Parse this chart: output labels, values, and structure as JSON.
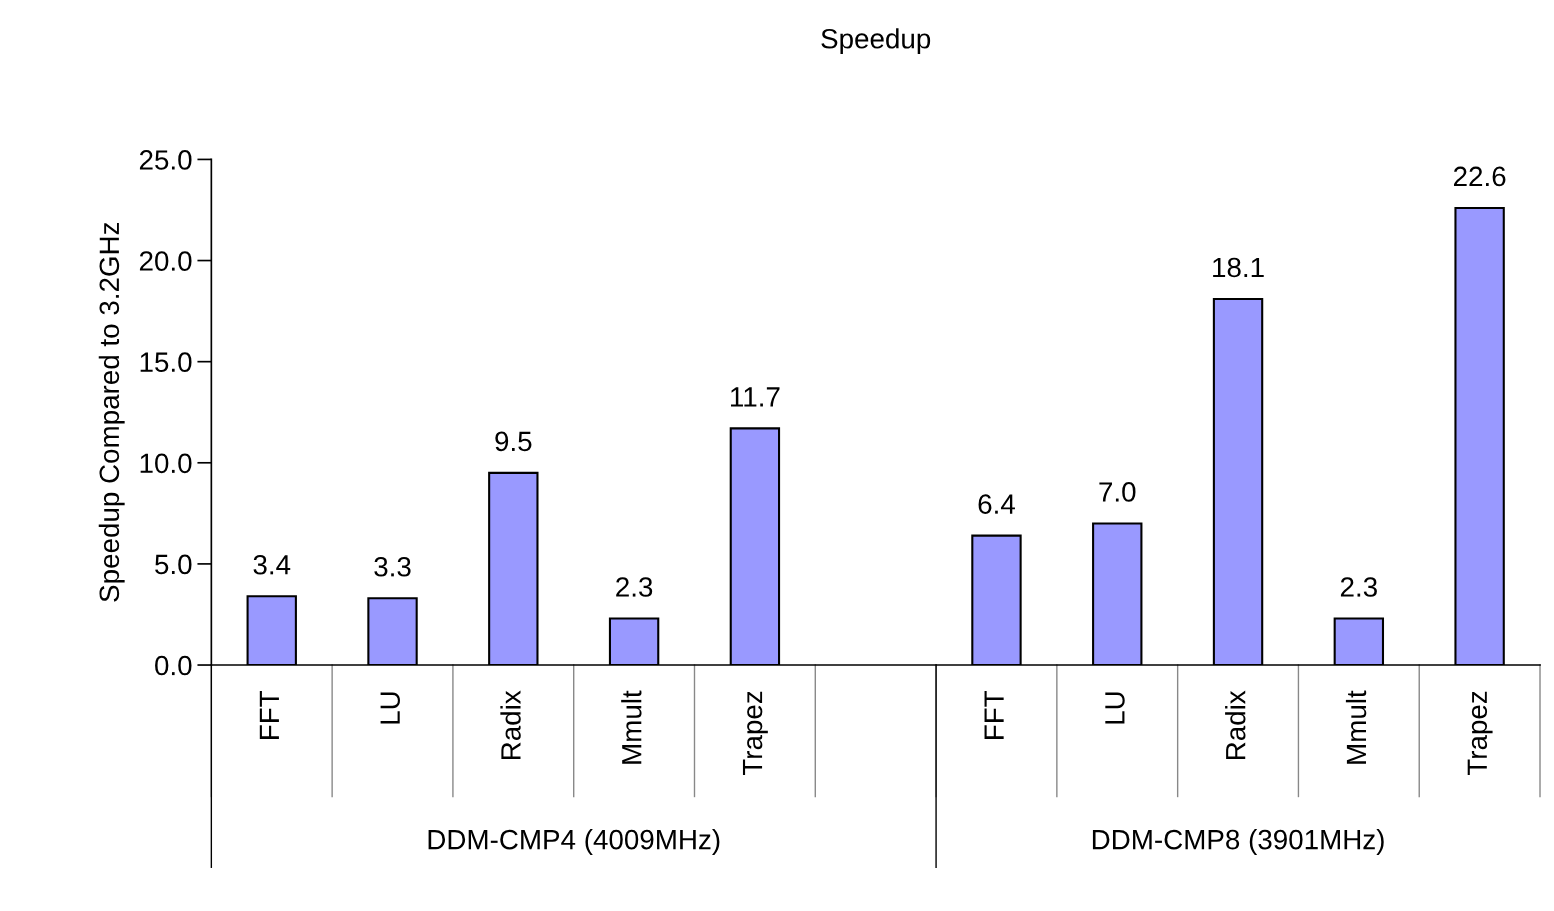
{
  "chart_data": {
    "type": "bar",
    "title": "Speedup",
    "ylabel": "Speedup Compared to 3.2GHz",
    "categories": [
      "FFT",
      "LU",
      "Radix",
      "Mmult",
      "Trapez",
      null,
      "FFT",
      "LU",
      "Radix",
      "Mmult",
      "Trapez"
    ],
    "values": [
      3.4,
      3.3,
      9.5,
      2.3,
      11.7,
      null,
      6.4,
      7.0,
      18.1,
      2.3,
      22.6
    ],
    "value_labels": [
      "3.4",
      "3.3",
      "9.5",
      "2.3",
      "11.7",
      null,
      "6.4",
      "7.0",
      "18.1",
      "2.3",
      "22.6"
    ],
    "color": "#9999ff",
    "ylim": [
      0,
      25
    ],
    "yticks": [
      {
        "value": 0,
        "label": "0.0"
      },
      {
        "value": 5,
        "label": "5.0"
      },
      {
        "value": 10,
        "label": "10.0"
      },
      {
        "value": 15,
        "label": "15.0"
      },
      {
        "value": 20,
        "label": "20.0"
      },
      {
        "value": 25,
        "label": "25.0"
      }
    ],
    "annotations": [
      "DDM-CMP4 (4009MHz)",
      "DDM-CMP8 (3901MHz)"
    ],
    "grid": false
  }
}
